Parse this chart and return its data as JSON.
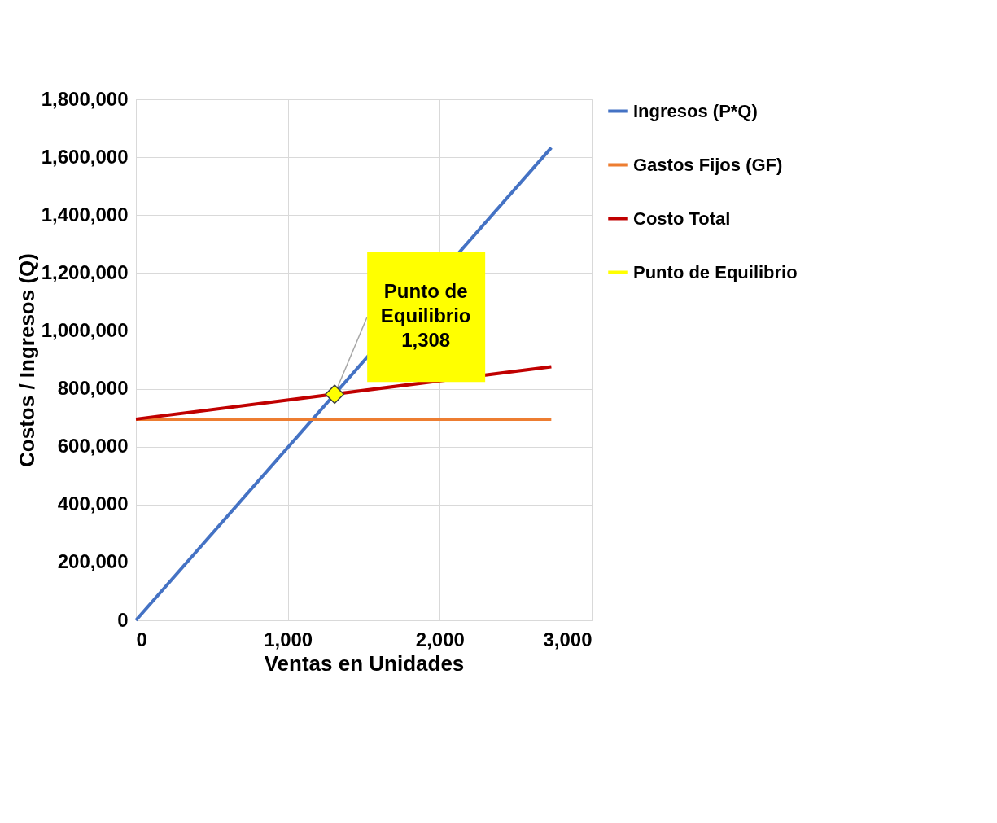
{
  "chart_data": {
    "type": "line",
    "xlabel": "Ventas en Unidades",
    "ylabel": "Costos / Ingresos (Q)",
    "xlim": [
      0,
      3000
    ],
    "xticks": [
      {
        "value": 0,
        "label": "0"
      },
      {
        "value": 1000,
        "label": "1,000"
      },
      {
        "value": 2000,
        "label": "2,000"
      },
      {
        "value": 3000,
        "label": "3,000"
      }
    ],
    "ylim": [
      0,
      1800000
    ],
    "yticks": [
      {
        "value": 0,
        "label": "0"
      },
      {
        "value": 200000,
        "label": "200,000"
      },
      {
        "value": 400000,
        "label": "400,000"
      },
      {
        "value": 600000,
        "label": "600,000"
      },
      {
        "value": 800000,
        "label": "800,000"
      },
      {
        "value": 1000000,
        "label": "1,000,000"
      },
      {
        "value": 1200000,
        "label": "1,200,000"
      },
      {
        "value": 1400000,
        "label": "1,400,000"
      },
      {
        "value": 1600000,
        "label": "1,600,000"
      },
      {
        "value": 1800000,
        "label": "1,800,000"
      }
    ],
    "grid": true,
    "legend": "right",
    "series": [
      {
        "name": "Ingresos (P*Q)",
        "color": "#4472c4",
        "x": [
          0,
          2734
        ],
        "values": [
          0,
          1633000
        ]
      },
      {
        "name": "Gastos Fijos (GF)",
        "color": "#ed7d31",
        "x": [
          0,
          2734
        ],
        "values": [
          695000,
          695000
        ]
      },
      {
        "name": "Costo Total",
        "color": "#c00000",
        "x": [
          0,
          2734
        ],
        "values": [
          695000,
          876000
        ]
      },
      {
        "name": "Punto de Equilibrio",
        "type": "scatter",
        "marker": "diamond",
        "color": "#ffff00",
        "x": [
          1308
        ],
        "values": [
          781000
        ]
      }
    ],
    "annotations": [
      {
        "text": "Punto de Equilibrio 1,308",
        "x": 1308,
        "y": 781000
      }
    ]
  }
}
